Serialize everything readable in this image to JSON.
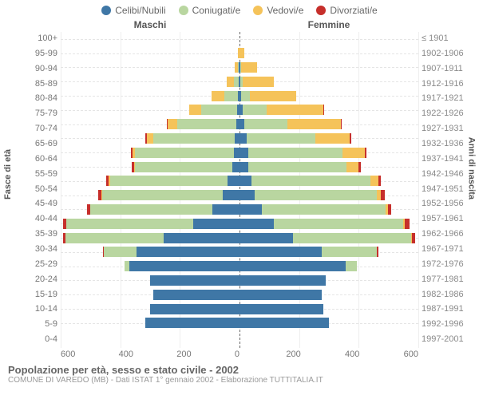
{
  "legend": [
    {
      "label": "Celibi/Nubili",
      "color": "#3f77a6"
    },
    {
      "label": "Coniugati/e",
      "color": "#b9d6a0"
    },
    {
      "label": "Vedovi/e",
      "color": "#f5c35a"
    },
    {
      "label": "Divorziati/e",
      "color": "#c62f2b"
    }
  ],
  "header_male": "Maschi",
  "header_female": "Femmine",
  "y_left_title": "Fasce di età",
  "y_right_title": "Anni di nascita",
  "x_ticks": [
    "0",
    "200",
    "400",
    "600"
  ],
  "caption_title": "Popolazione per età, sesso e stato civile - 2002",
  "caption_sub": "COMUNE DI VAREDO (MB) - Dati ISTAT 1° gennaio 2002 - Elaborazione TUTTITALIA.IT",
  "colors": {
    "single": "#3f77a6",
    "married": "#b9d6a0",
    "widowed": "#f5c35a",
    "divorced": "#c62f2b",
    "grid": "#e5e5e5",
    "bg": "#ffffff"
  },
  "max_value": 600,
  "rows": [
    {
      "age": "100+",
      "birth": "≤ 1901",
      "m": [
        0,
        0,
        0,
        0
      ],
      "f": [
        0,
        0,
        0,
        0
      ]
    },
    {
      "age": "95-99",
      "birth": "1902-1906",
      "m": [
        0,
        0,
        5,
        0
      ],
      "f": [
        0,
        0,
        15,
        0
      ]
    },
    {
      "age": "90-94",
      "birth": "1907-1911",
      "m": [
        2,
        3,
        10,
        0
      ],
      "f": [
        2,
        3,
        55,
        0
      ]
    },
    {
      "age": "85-89",
      "birth": "1912-1916",
      "m": [
        3,
        15,
        25,
        0
      ],
      "f": [
        3,
        8,
        105,
        0
      ]
    },
    {
      "age": "80-84",
      "birth": "1917-1921",
      "m": [
        5,
        45,
        45,
        0
      ],
      "f": [
        5,
        30,
        155,
        0
      ]
    },
    {
      "age": "75-79",
      "birth": "1922-1926",
      "m": [
        8,
        120,
        40,
        2
      ],
      "f": [
        10,
        80,
        190,
        2
      ]
    },
    {
      "age": "70-74",
      "birth": "1927-1931",
      "m": [
        10,
        200,
        30,
        3
      ],
      "f": [
        15,
        145,
        180,
        3
      ]
    },
    {
      "age": "65-69",
      "birth": "1932-1936",
      "m": [
        15,
        275,
        20,
        5
      ],
      "f": [
        25,
        230,
        115,
        5
      ]
    },
    {
      "age": "60-64",
      "birth": "1937-1941",
      "m": [
        20,
        330,
        10,
        5
      ],
      "f": [
        30,
        315,
        75,
        5
      ]
    },
    {
      "age": "55-59",
      "birth": "1942-1946",
      "m": [
        25,
        325,
        5,
        6
      ],
      "f": [
        30,
        330,
        40,
        8
      ]
    },
    {
      "age": "50-54",
      "birth": "1947-1951",
      "m": [
        40,
        395,
        5,
        8
      ],
      "f": [
        40,
        400,
        25,
        10
      ]
    },
    {
      "age": "45-49",
      "birth": "1952-1956",
      "m": [
        55,
        405,
        3,
        10
      ],
      "f": [
        50,
        410,
        15,
        12
      ]
    },
    {
      "age": "40-44",
      "birth": "1957-1961",
      "m": [
        90,
        410,
        2,
        10
      ],
      "f": [
        75,
        415,
        8,
        12
      ]
    },
    {
      "age": "35-39",
      "birth": "1962-1966",
      "m": [
        155,
        425,
        0,
        12
      ],
      "f": [
        115,
        435,
        5,
        15
      ]
    },
    {
      "age": "30-34",
      "birth": "1967-1971",
      "m": [
        255,
        330,
        0,
        8
      ],
      "f": [
        180,
        395,
        3,
        12
      ]
    },
    {
      "age": "25-29",
      "birth": "1972-1976",
      "m": [
        345,
        110,
        0,
        3
      ],
      "f": [
        275,
        185,
        0,
        5
      ]
    },
    {
      "age": "20-24",
      "birth": "1977-1981",
      "m": [
        370,
        15,
        0,
        0
      ],
      "f": [
        355,
        40,
        0,
        0
      ]
    },
    {
      "age": "15-19",
      "birth": "1982-1986",
      "m": [
        300,
        0,
        0,
        0
      ],
      "f": [
        290,
        0,
        0,
        0
      ]
    },
    {
      "age": "10-14",
      "birth": "1987-1991",
      "m": [
        290,
        0,
        0,
        0
      ],
      "f": [
        275,
        0,
        0,
        0
      ]
    },
    {
      "age": "5-9",
      "birth": "1992-1996",
      "m": [
        300,
        0,
        0,
        0
      ],
      "f": [
        280,
        0,
        0,
        0
      ]
    },
    {
      "age": "0-4",
      "birth": "1997-2001",
      "m": [
        315,
        0,
        0,
        0
      ],
      "f": [
        300,
        0,
        0,
        0
      ]
    }
  ]
}
